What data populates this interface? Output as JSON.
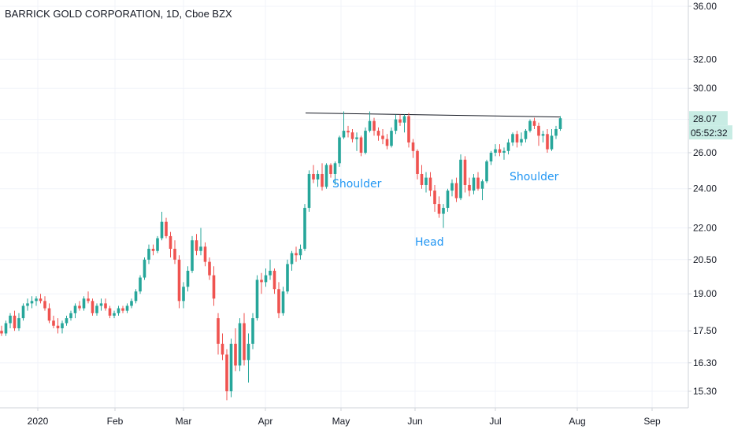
{
  "chart_data": {
    "type": "candlestick",
    "title": "BARRICK GOLD CORPORATION, 1D, Cboe BZX",
    "y_scale": "log",
    "y_ticks": [
      "15.30",
      "16.30",
      "17.50",
      "19.00",
      "20.50",
      "22.00",
      "24.00",
      "26.00",
      "28.00",
      "30.00",
      "32.00",
      "36.00"
    ],
    "x_ticks": [
      "2020",
      "Feb",
      "Mar",
      "Apr",
      "May",
      "Jun",
      "Jul",
      "Aug",
      "Sep"
    ],
    "price_label": "28.07",
    "price_value": 28.07,
    "countdown_label": "05:52:32",
    "up_color": "#26a69a",
    "down_color": "#ef5350",
    "neckline": {
      "start_price": 28.4,
      "end_price": 28.15,
      "color": "#131722"
    },
    "annotations": [
      {
        "text": "Shoulder",
        "color": "#2196f3"
      },
      {
        "text": "Head",
        "color": "#2196f3"
      },
      {
        "text": "Shoulder",
        "color": "#2196f3"
      }
    ],
    "candles": [
      [
        17.5,
        17.7,
        17.3,
        17.4
      ],
      [
        17.4,
        17.9,
        17.3,
        17.8
      ],
      [
        17.8,
        18.2,
        17.6,
        18.1
      ],
      [
        18.1,
        18.3,
        17.5,
        17.6
      ],
      [
        17.6,
        18.2,
        17.5,
        18.0
      ],
      [
        18.0,
        18.6,
        17.9,
        18.5
      ],
      [
        18.5,
        18.8,
        18.3,
        18.6
      ],
      [
        18.6,
        18.9,
        18.4,
        18.7
      ],
      [
        18.7,
        18.9,
        18.5,
        18.8
      ],
      [
        18.8,
        19.0,
        18.6,
        18.7
      ],
      [
        18.7,
        18.9,
        18.3,
        18.4
      ],
      [
        18.4,
        18.6,
        17.8,
        17.9
      ],
      [
        17.9,
        18.1,
        17.6,
        17.7
      ],
      [
        17.7,
        18.0,
        17.4,
        17.6
      ],
      [
        17.6,
        17.9,
        17.4,
        17.8
      ],
      [
        17.8,
        18.1,
        17.7,
        18.0
      ],
      [
        18.0,
        18.3,
        17.9,
        18.2
      ],
      [
        18.2,
        18.6,
        18.0,
        18.5
      ],
      [
        18.5,
        18.7,
        18.3,
        18.4
      ],
      [
        18.4,
        18.9,
        18.3,
        18.8
      ],
      [
        18.8,
        19.1,
        18.6,
        18.7
      ],
      [
        18.7,
        18.8,
        18.1,
        18.2
      ],
      [
        18.2,
        18.6,
        18.1,
        18.5
      ],
      [
        18.5,
        18.8,
        18.3,
        18.6
      ],
      [
        18.6,
        18.8,
        18.3,
        18.4
      ],
      [
        18.4,
        18.5,
        18.0,
        18.1
      ],
      [
        18.1,
        18.3,
        18.0,
        18.2
      ],
      [
        18.2,
        18.5,
        18.1,
        18.4
      ],
      [
        18.4,
        18.5,
        18.2,
        18.3
      ],
      [
        18.3,
        18.6,
        18.2,
        18.5
      ],
      [
        18.5,
        18.8,
        18.4,
        18.7
      ],
      [
        18.7,
        19.2,
        18.6,
        19.1
      ],
      [
        19.1,
        19.8,
        19.0,
        19.7
      ],
      [
        19.7,
        20.6,
        19.6,
        20.5
      ],
      [
        20.5,
        21.2,
        20.3,
        21.0
      ],
      [
        21.0,
        21.2,
        20.7,
        20.9
      ],
      [
        20.9,
        21.6,
        20.8,
        21.5
      ],
      [
        21.5,
        22.8,
        21.4,
        22.3
      ],
      [
        22.3,
        22.5,
        21.5,
        21.6
      ],
      [
        21.6,
        21.8,
        20.6,
        21.0
      ],
      [
        21.0,
        21.4,
        20.3,
        20.5
      ],
      [
        20.5,
        20.7,
        18.4,
        18.7
      ],
      [
        18.7,
        19.5,
        18.4,
        19.3
      ],
      [
        19.3,
        20.2,
        19.1,
        20.0
      ],
      [
        20.0,
        21.6,
        19.9,
        21.4
      ],
      [
        21.4,
        21.7,
        20.7,
        20.9
      ],
      [
        20.9,
        22.0,
        20.7,
        21.1
      ],
      [
        21.1,
        21.3,
        20.2,
        20.4
      ],
      [
        20.4,
        20.6,
        19.6,
        19.8
      ],
      [
        19.8,
        20.2,
        18.5,
        18.8
      ],
      [
        18.0,
        18.2,
        16.6,
        17.0
      ],
      [
        17.0,
        17.4,
        16.4,
        16.6
      ],
      [
        16.6,
        16.8,
        15.0,
        15.3
      ],
      [
        15.3,
        17.2,
        15.1,
        17.0
      ],
      [
        17.0,
        17.6,
        16.0,
        16.2
      ],
      [
        16.2,
        18.0,
        16.0,
        17.8
      ],
      [
        17.8,
        18.2,
        16.2,
        16.4
      ],
      [
        16.4,
        17.4,
        15.6,
        17.0
      ],
      [
        17.0,
        18.2,
        16.8,
        18.0
      ],
      [
        18.0,
        19.8,
        17.9,
        19.6
      ],
      [
        19.6,
        19.9,
        19.0,
        19.5
      ],
      [
        19.5,
        20.1,
        19.3,
        19.8
      ],
      [
        19.8,
        20.5,
        19.6,
        20.0
      ],
      [
        20.0,
        20.1,
        19.0,
        19.2
      ],
      [
        19.2,
        19.5,
        18.0,
        18.2
      ],
      [
        18.2,
        19.3,
        18.1,
        19.1
      ],
      [
        19.1,
        20.5,
        19.0,
        20.3
      ],
      [
        20.3,
        20.9,
        20.0,
        20.8
      ],
      [
        20.8,
        21.1,
        20.4,
        20.7
      ],
      [
        20.7,
        21.2,
        20.5,
        21.0
      ],
      [
        21.0,
        23.2,
        20.9,
        23.0
      ],
      [
        23.0,
        25.0,
        22.8,
        24.8
      ],
      [
        24.8,
        25.3,
        24.3,
        24.5
      ],
      [
        24.5,
        25.0,
        24.1,
        24.8
      ],
      [
        24.8,
        25.4,
        23.9,
        24.1
      ],
      [
        24.1,
        25.4,
        24.0,
        25.3
      ],
      [
        25.3,
        25.4,
        24.6,
        24.8
      ],
      [
        24.8,
        25.5,
        24.2,
        25.4
      ],
      [
        25.4,
        27.0,
        25.2,
        26.9
      ],
      [
        26.9,
        28.5,
        26.8,
        27.3
      ],
      [
        27.3,
        27.6,
        26.9,
        27.2
      ],
      [
        27.2,
        27.4,
        26.6,
        26.8
      ],
      [
        26.8,
        27.2,
        26.1,
        26.9
      ],
      [
        26.9,
        27.0,
        25.8,
        26.0
      ],
      [
        26.0,
        27.5,
        25.9,
        27.3
      ],
      [
        27.3,
        28.5,
        27.2,
        27.9
      ],
      [
        27.9,
        28.1,
        27.0,
        27.3
      ],
      [
        27.3,
        27.5,
        26.7,
        27.0
      ],
      [
        27.0,
        27.4,
        26.5,
        26.8
      ],
      [
        26.8,
        27.1,
        26.2,
        26.4
      ],
      [
        26.4,
        27.5,
        26.3,
        27.3
      ],
      [
        27.3,
        28.3,
        27.1,
        28.0
      ],
      [
        28.0,
        28.3,
        27.6,
        27.8
      ],
      [
        27.8,
        28.3,
        27.2,
        28.2
      ],
      [
        28.2,
        28.4,
        26.3,
        26.6
      ],
      [
        26.6,
        26.8,
        25.7,
        26.1
      ],
      [
        26.1,
        26.2,
        24.5,
        24.8
      ],
      [
        24.8,
        25.3,
        24.0,
        24.2
      ],
      [
        24.2,
        24.9,
        23.8,
        24.6
      ],
      [
        24.6,
        24.9,
        23.6,
        23.9
      ],
      [
        23.9,
        24.2,
        22.8,
        23.2
      ],
      [
        23.2,
        23.6,
        22.5,
        22.7
      ],
      [
        22.7,
        23.2,
        22.0,
        23.0
      ],
      [
        23.0,
        24.0,
        22.8,
        23.9
      ],
      [
        23.9,
        24.5,
        23.6,
        24.3
      ],
      [
        24.3,
        24.6,
        23.3,
        23.5
      ],
      [
        23.5,
        25.9,
        23.4,
        25.6
      ],
      [
        25.6,
        25.8,
        23.8,
        24.2
      ],
      [
        24.2,
        24.6,
        23.6,
        23.9
      ],
      [
        23.9,
        24.8,
        23.7,
        24.6
      ],
      [
        24.6,
        24.9,
        23.9,
        24.0
      ],
      [
        24.0,
        24.5,
        23.4,
        24.4
      ],
      [
        24.4,
        25.6,
        24.3,
        25.5
      ],
      [
        25.5,
        26.1,
        25.3,
        26.0
      ],
      [
        26.0,
        26.5,
        25.8,
        26.2
      ],
      [
        26.2,
        26.5,
        25.8,
        26.0
      ],
      [
        26.0,
        26.3,
        25.6,
        26.1
      ],
      [
        26.1,
        26.8,
        25.9,
        26.6
      ],
      [
        26.6,
        27.2,
        26.4,
        27.1
      ],
      [
        27.1,
        27.3,
        26.3,
        26.6
      ],
      [
        26.6,
        27.2,
        26.4,
        26.8
      ],
      [
        26.8,
        27.4,
        26.6,
        27.3
      ],
      [
        27.3,
        28.0,
        27.2,
        27.9
      ],
      [
        27.9,
        28.1,
        27.4,
        27.6
      ],
      [
        27.6,
        27.8,
        26.4,
        27.0
      ],
      [
        27.0,
        27.3,
        26.6,
        27.1
      ],
      [
        27.1,
        27.4,
        26.0,
        26.2
      ],
      [
        26.2,
        27.4,
        26.1,
        27.0
      ],
      [
        27.0,
        27.6,
        26.8,
        27.4
      ],
      [
        27.4,
        28.2,
        27.3,
        28.07
      ]
    ]
  }
}
